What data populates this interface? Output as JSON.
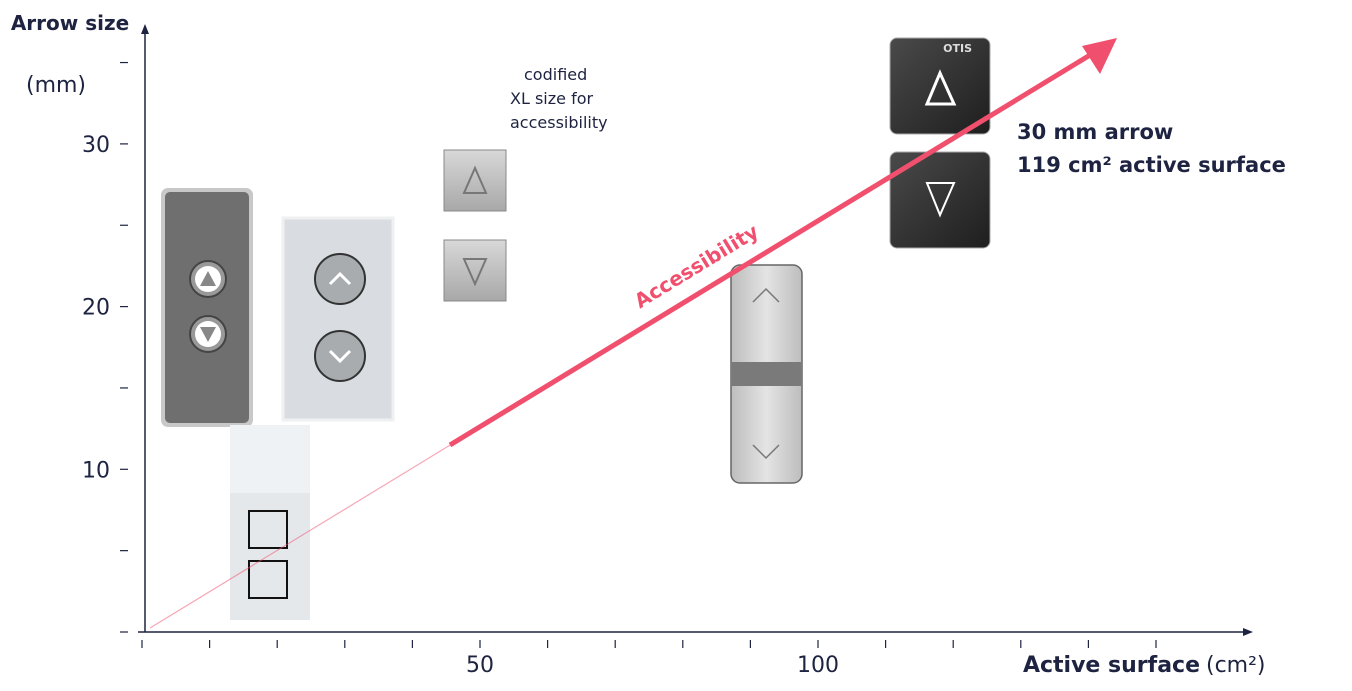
{
  "chart_data": {
    "type": "axes",
    "y_label_bold": "Arrow size",
    "y_label_unit": "(mm)",
    "x_label_bold": "Active surface",
    "x_label_unit": "(cm²)",
    "xlim": [
      0,
      165
    ],
    "ylim": [
      0,
      37
    ],
    "xticks": [
      50,
      100
    ],
    "yticks": [
      10,
      20,
      30
    ],
    "xminorticks": [
      0,
      10,
      20,
      30,
      40,
      50,
      60,
      70,
      80,
      90,
      100,
      110,
      120,
      130,
      140,
      150
    ],
    "yminorticks": [
      0,
      5,
      10,
      15,
      20,
      25,
      30,
      35
    ],
    "annotation_lines": [
      "codified",
      "XL size for",
      "accessibility"
    ],
    "callout_lines": [
      "30 mm arrow",
      "119 cm² active surface"
    ],
    "arrow_label": "Accessibility",
    "arrow_color": "#f0506e",
    "logo": "OTIS"
  }
}
